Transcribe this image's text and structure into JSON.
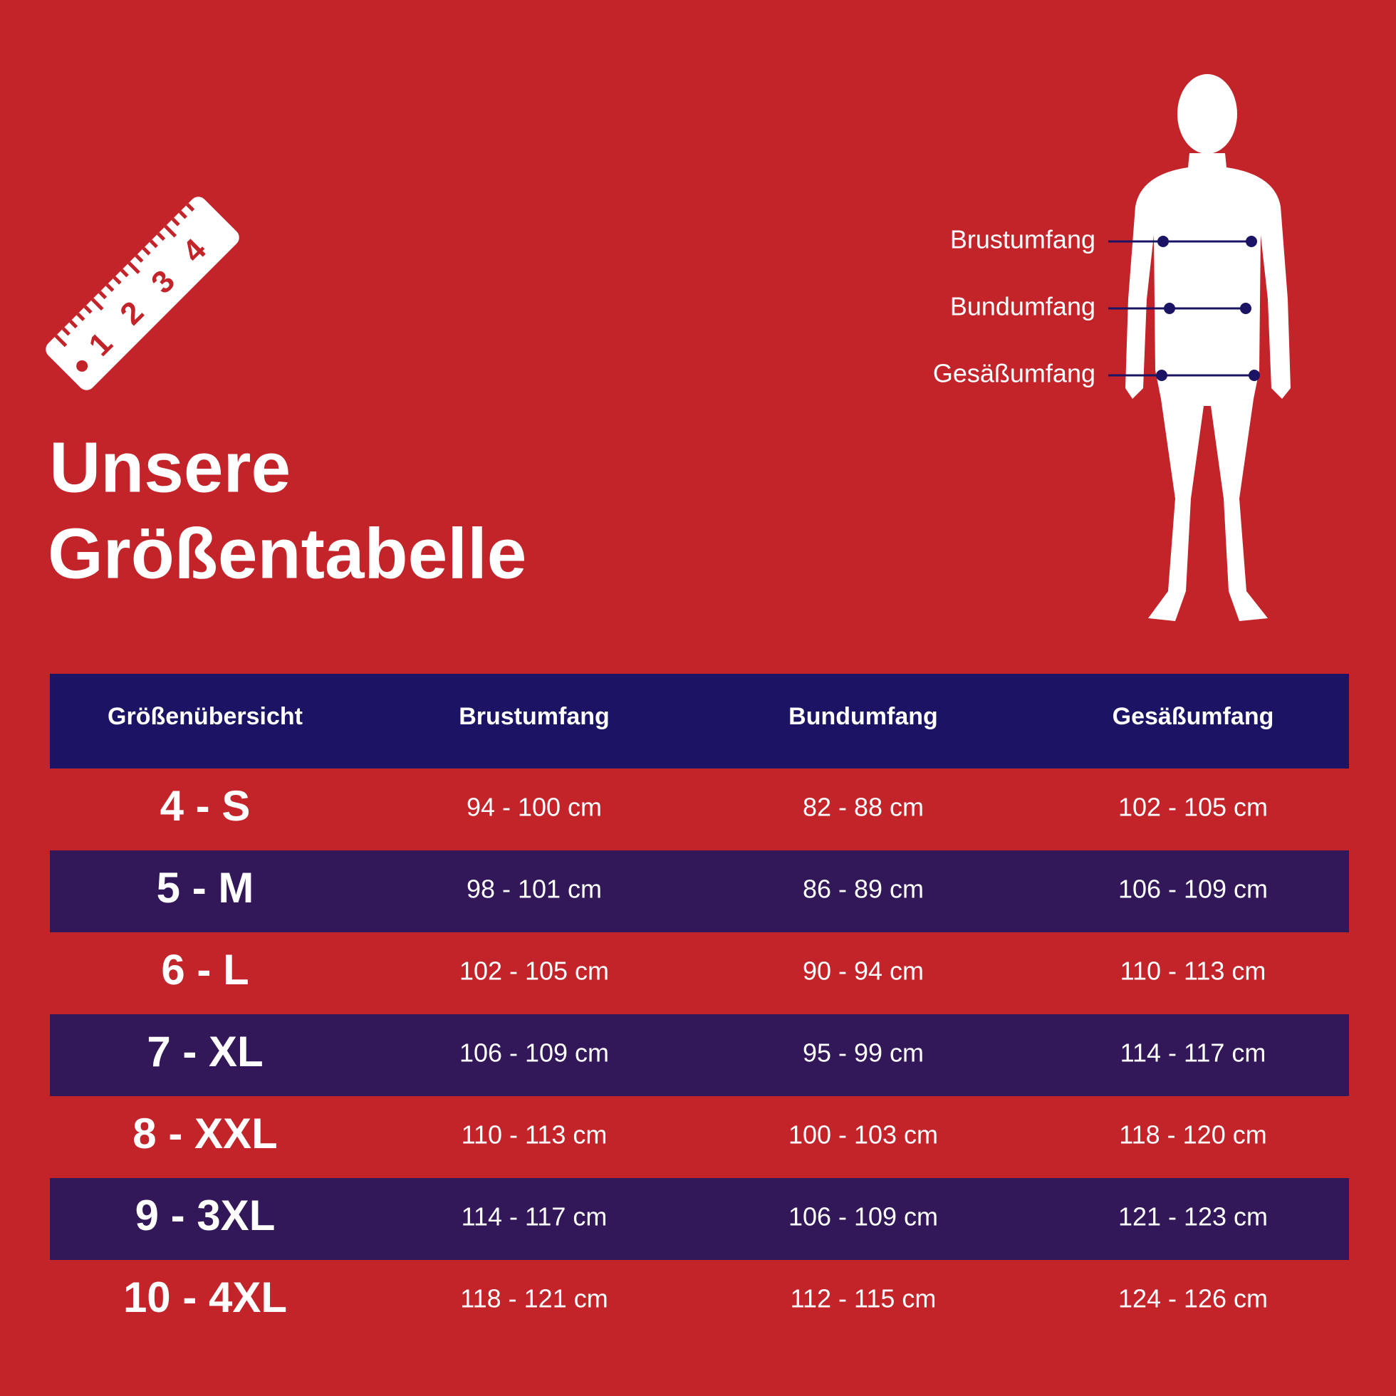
{
  "title": [
    "Unsere",
    "Größentabelle"
  ],
  "ruler": {
    "numbers": [
      "1",
      "2",
      "3",
      "4"
    ]
  },
  "figure": {
    "labels": [
      "Brustumfang",
      "Bundumfang",
      "Gesäßumfang"
    ]
  },
  "table": {
    "header": [
      "Größenübersicht",
      "Brustumfang",
      "Bundumfang",
      "Gesäßumfang"
    ],
    "rows": [
      [
        "4 - S",
        "94 - 100 cm",
        "82 - 88 cm",
        "102 - 105 cm"
      ],
      [
        "5 - M",
        "98 - 101 cm",
        "86 - 89 cm",
        "106 - 109 cm"
      ],
      [
        "6 - L",
        "102 - 105 cm",
        "90 - 94 cm",
        "110 - 113 cm"
      ],
      [
        "7 - XL",
        "106 - 109 cm",
        "95 - 99 cm",
        "114 - 117 cm"
      ],
      [
        "8 - XXL",
        "110 - 113 cm",
        "100 - 103 cm",
        "118 - 120 cm"
      ],
      [
        "9 - 3XL",
        "114 - 117 cm",
        "106 - 109 cm",
        "121 - 123 cm"
      ],
      [
        "10 - 4XL",
        "118 - 121 cm",
        "112 - 115 cm",
        "124 - 126 cm"
      ]
    ]
  }
}
